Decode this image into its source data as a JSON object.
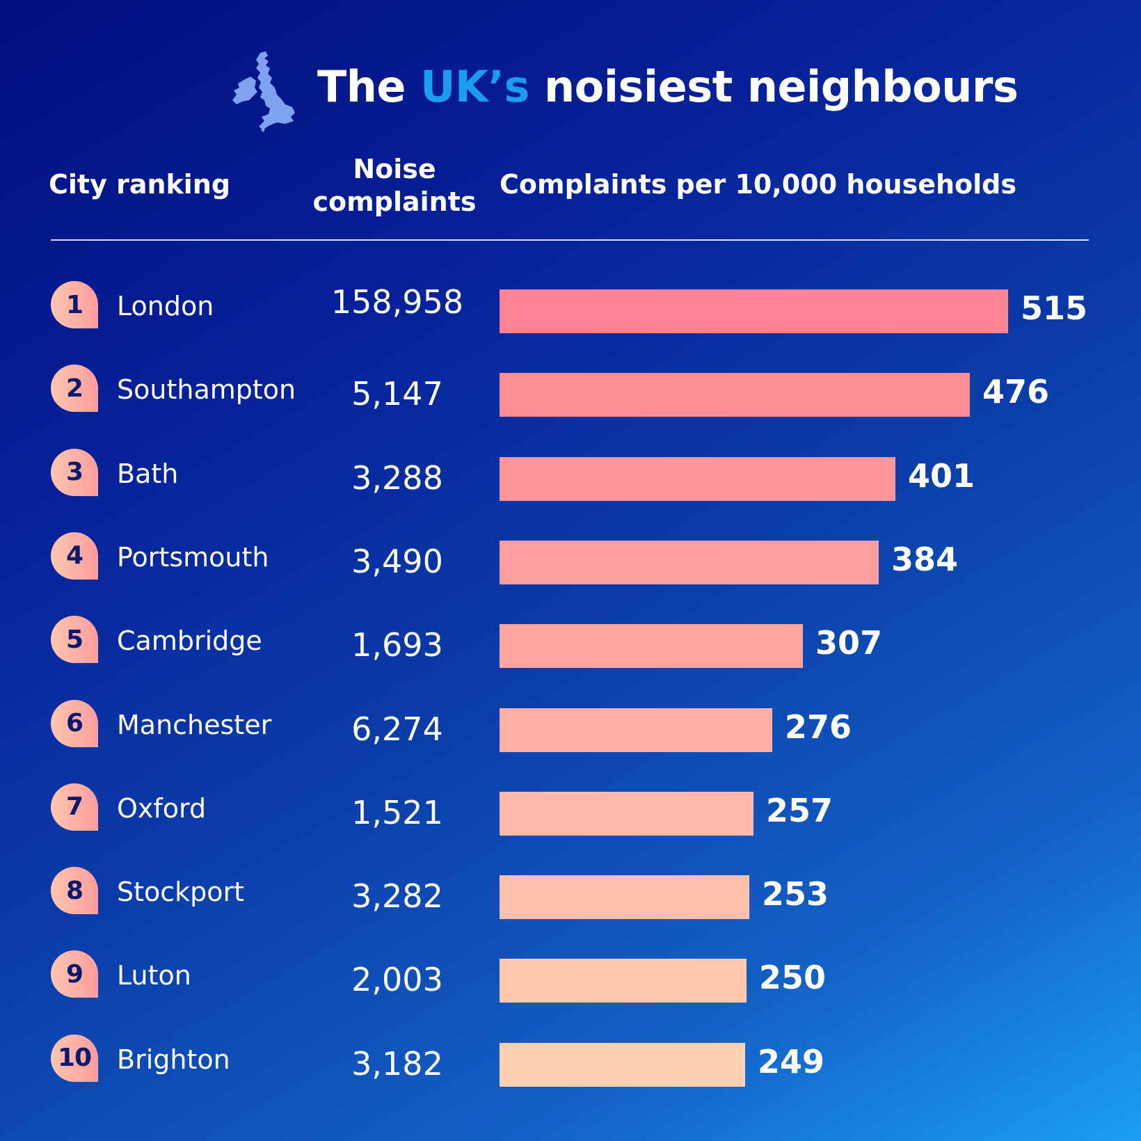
{
  "title": {
    "prefix": "The ",
    "accent": "UK’s",
    "suffix": " noisiest neighbours"
  },
  "headers": {
    "rank": "City ranking",
    "noise_line1": "Noise",
    "noise_line2": "complaints",
    "rate": "Complaints per 10,000 households"
  },
  "icon": "uk-map-icon",
  "colors": {
    "accent": "#1c9cf0",
    "bar_top": "#ff8594",
    "bar_bottom": "#ffd1b4",
    "badge_text": "#0b1a6e"
  },
  "chart_data": {
    "type": "bar",
    "orientation": "horizontal",
    "title": "The UK’s noisiest neighbours",
    "xlabel": "Complaints per 10,000 households",
    "xlim": [
      0,
      515
    ],
    "rows": [
      {
        "rank": "1",
        "city": "London",
        "complaints": "158,958",
        "per_10000": 515
      },
      {
        "rank": "2",
        "city": "Southampton",
        "complaints": "5,147",
        "per_10000": 476
      },
      {
        "rank": "3",
        "city": "Bath",
        "complaints": "3,288",
        "per_10000": 401
      },
      {
        "rank": "4",
        "city": "Portsmouth",
        "complaints": "3,490",
        "per_10000": 384
      },
      {
        "rank": "5",
        "city": "Cambridge",
        "complaints": "1,693",
        "per_10000": 307
      },
      {
        "rank": "6",
        "city": "Manchester",
        "complaints": "6,274",
        "per_10000": 276
      },
      {
        "rank": "7",
        "city": "Oxford",
        "complaints": "1,521",
        "per_10000": 257
      },
      {
        "rank": "8",
        "city": "Stockport",
        "complaints": "3,282",
        "per_10000": 253
      },
      {
        "rank": "9",
        "city": "Luton",
        "complaints": "2,003",
        "per_10000": 250
      },
      {
        "rank": "10",
        "city": "Brighton",
        "complaints": "3,182",
        "per_10000": 249
      }
    ]
  }
}
